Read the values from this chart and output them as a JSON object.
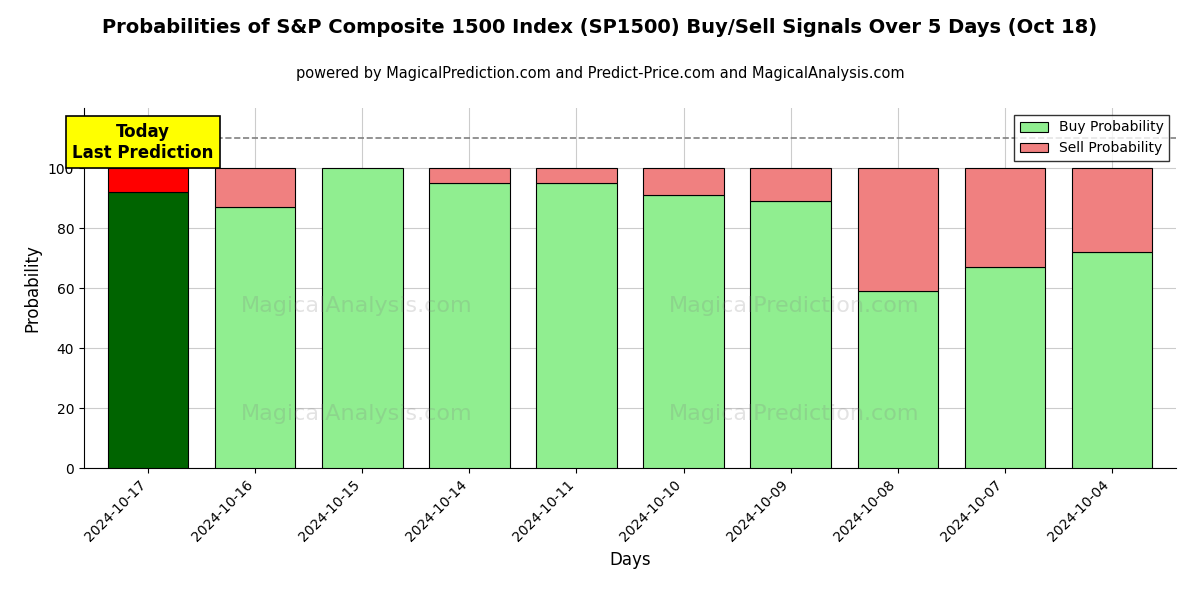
{
  "title": "Probabilities of S&P Composite 1500 Index (SP1500) Buy/Sell Signals Over 5 Days (Oct 18)",
  "subtitle": "powered by MagicalPrediction.com and Predict-Price.com and MagicalAnalysis.com",
  "xlabel": "Days",
  "ylabel": "Probability",
  "dates": [
    "2024-10-17",
    "2024-10-16",
    "2024-10-15",
    "2024-10-14",
    "2024-10-11",
    "2024-10-10",
    "2024-10-09",
    "2024-10-08",
    "2024-10-07",
    "2024-10-04"
  ],
  "buy_values": [
    92,
    87,
    100,
    95,
    95,
    91,
    89,
    59,
    67,
    72
  ],
  "sell_values": [
    8,
    13,
    0,
    5,
    5,
    9,
    11,
    41,
    33,
    28
  ],
  "today_bar_buy_color": "#006400",
  "today_bar_sell_color": "#FF0000",
  "other_bar_buy_color": "#90EE90",
  "other_bar_sell_color": "#F08080",
  "bar_edge_color": "#000000",
  "legend_buy_color": "#90EE90",
  "legend_sell_color": "#F08080",
  "ylim": [
    0,
    120
  ],
  "yticks": [
    0,
    20,
    40,
    60,
    80,
    100
  ],
  "dashed_line_y": 110,
  "annotation_text": "Today\nLast Prediction",
  "annotation_bg": "#FFFF00",
  "title_fontsize": 14,
  "subtitle_fontsize": 10.5,
  "axis_label_fontsize": 12,
  "tick_fontsize": 10,
  "watermark1": "MagicalAnalysis.com",
  "watermark2": "MagicalPrediction.com",
  "background_color": "#ffffff",
  "grid_color": "#cccccc"
}
